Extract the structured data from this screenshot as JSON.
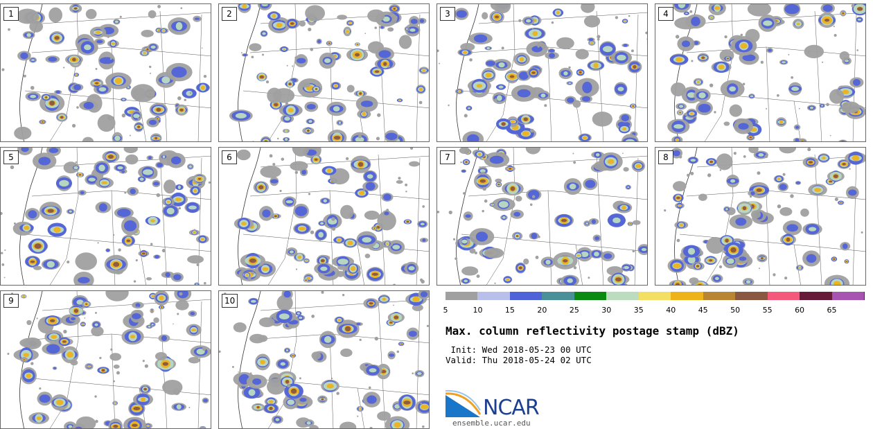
{
  "panels": [
    {
      "label": "1"
    },
    {
      "label": "2"
    },
    {
      "label": "3"
    },
    {
      "label": "4"
    },
    {
      "label": "5"
    },
    {
      "label": "6"
    },
    {
      "label": "7"
    },
    {
      "label": "8"
    },
    {
      "label": "9"
    },
    {
      "label": "10"
    }
  ],
  "colorbar": {
    "ticks": [
      "5",
      "10",
      "15",
      "20",
      "25",
      "30",
      "35",
      "40",
      "45",
      "50",
      "55",
      "60",
      "65"
    ],
    "colors": [
      "#a0a0a0",
      "#b7bfea",
      "#5062d8",
      "#4a9098",
      "#0b8a12",
      "#bcdcc0",
      "#f3df63",
      "#eeb21b",
      "#b98532",
      "#8a5741",
      "#f4587a",
      "#681b39",
      "#a653b2"
    ]
  },
  "title": "Max. column reflectivity postage stamp (dBZ)",
  "init_line": " Init: Wed 2018-05-23 00 UTC",
  "valid_line": "Valid: Thu 2018-05-24 02 UTC",
  "logo": {
    "name": "NCAR",
    "url": "ensemble.ucar.edu",
    "icon": "ncar-logo-icon"
  }
}
